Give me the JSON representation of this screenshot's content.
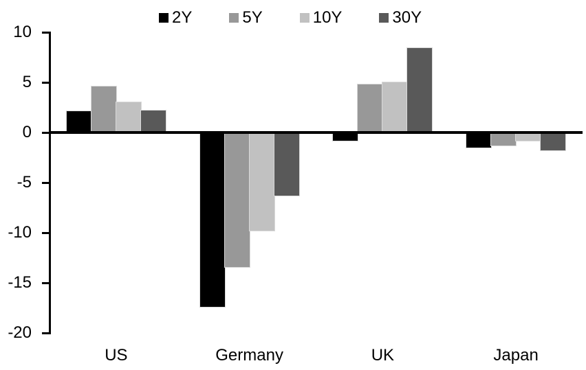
{
  "chart_data": {
    "type": "bar",
    "title": "",
    "xlabel": "",
    "ylabel": "",
    "categories": [
      "US",
      "Germany",
      "UK",
      "Japan"
    ],
    "series": [
      {
        "name": "2Y",
        "color": "#000000",
        "values": [
          2.1,
          -17.4,
          -0.8,
          -1.5
        ]
      },
      {
        "name": "5Y",
        "color": "#989898",
        "values": [
          4.6,
          -13.4,
          4.8,
          -1.3
        ]
      },
      {
        "name": "10Y",
        "color": "#c1c1c1",
        "values": [
          3.0,
          -9.8,
          5.0,
          -0.8
        ]
      },
      {
        "name": "30Y",
        "color": "#595959",
        "values": [
          2.2,
          -6.3,
          8.4,
          -1.8
        ]
      }
    ],
    "ylim": [
      -20,
      10
    ],
    "yticks": [
      10,
      5,
      0,
      -5,
      -10,
      -15,
      -20
    ],
    "legend_position": "top",
    "grid": false,
    "axis_color": "#000000",
    "background_color": "#ffffff"
  }
}
